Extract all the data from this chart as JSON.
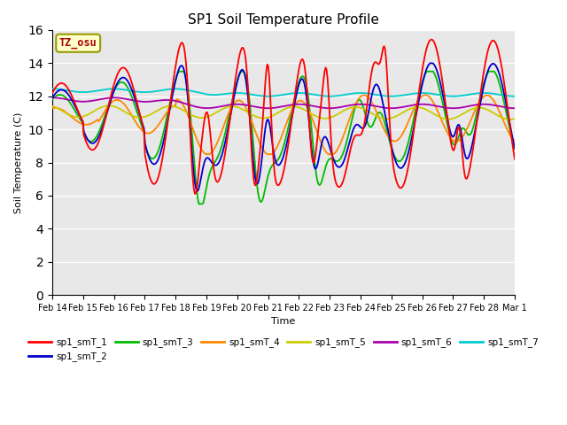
{
  "title": "SP1 Soil Temperature Profile",
  "xlabel": "Time",
  "ylabel": "Soil Temperature (C)",
  "ylim": [
    0,
    16
  ],
  "yticks": [
    0,
    2,
    4,
    6,
    8,
    10,
    12,
    14,
    16
  ],
  "colors": {
    "sp1_smT_1": "#ff0000",
    "sp1_smT_2": "#0000cc",
    "sp1_smT_3": "#00bb00",
    "sp1_smT_4": "#ff8800",
    "sp1_smT_5": "#cccc00",
    "sp1_smT_6": "#aa00aa",
    "sp1_smT_7": "#00cccc"
  },
  "tz_label": "TZ_osu",
  "tz_color": "#aa0000",
  "tz_bg": "#ffffcc",
  "tz_border": "#999900",
  "background_color": "#e8e8e8",
  "xtick_labels": [
    "Feb 14",
    "Feb 15",
    "Feb 16",
    "Feb 17",
    "Feb 18",
    "Feb 19",
    "Feb 20",
    "Feb 21",
    "Feb 22",
    "Feb 23",
    "Feb 24",
    "Feb 25",
    "Feb 26",
    "Feb 27",
    "Feb 28",
    "Mar 1"
  ],
  "n_points": 500
}
